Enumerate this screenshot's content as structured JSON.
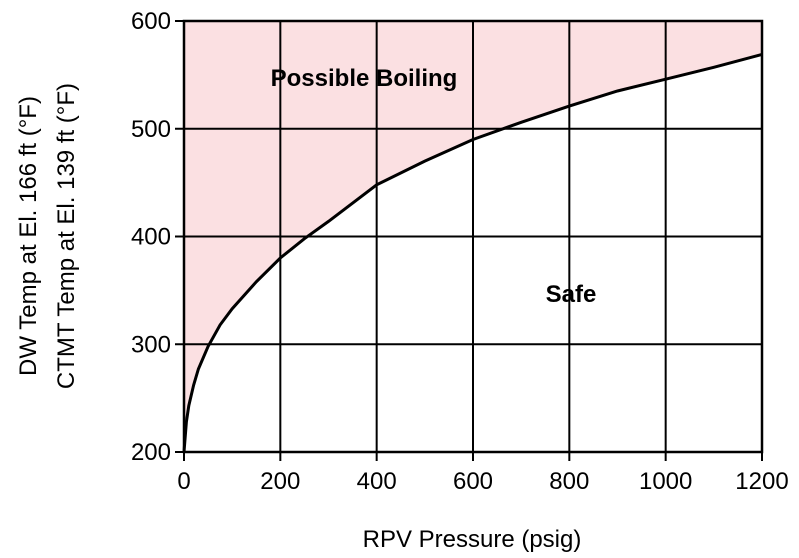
{
  "chart_data": {
    "type": "area",
    "title": "",
    "xlabel": "RPV Pressure (psig)",
    "ylabel_lines": [
      "DW Temp at El. 166 ft (°F)",
      "CTMT Temp at El. 139 ft (°F)"
    ],
    "xlim": [
      0,
      1200
    ],
    "ylim": [
      200,
      600
    ],
    "x_ticks": [
      0,
      200,
      400,
      600,
      800,
      1000,
      1200
    ],
    "y_ticks": [
      200,
      300,
      400,
      500,
      600
    ],
    "grid": true,
    "curve": {
      "x": [
        0,
        5,
        10,
        20,
        30,
        50,
        75,
        100,
        150,
        200,
        250,
        300,
        400,
        500,
        600,
        700,
        800,
        900,
        1000,
        1100,
        1200
      ],
      "y": [
        200,
        228,
        243,
        262,
        277,
        298,
        318,
        333,
        358,
        380,
        398,
        414,
        448,
        470,
        490,
        506,
        521,
        535,
        546,
        557,
        569
      ]
    },
    "regions": [
      {
        "label": "Possible Boiling",
        "position": "above curve",
        "color": "#fbe0e2"
      },
      {
        "label": "Safe",
        "position": "below curve",
        "color": "#ffffff"
      }
    ],
    "colors": {
      "curve": "#000000",
      "grid": "#000000",
      "shade": "#fbe0e2"
    }
  }
}
